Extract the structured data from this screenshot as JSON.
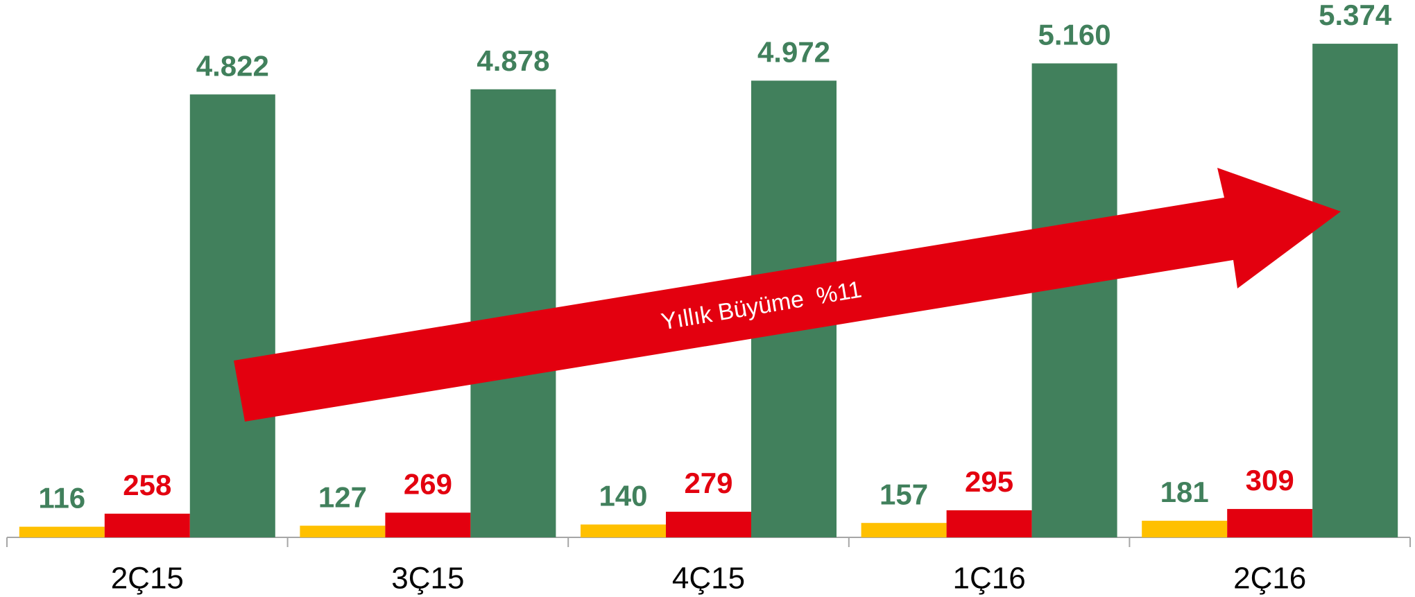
{
  "chart_data": {
    "type": "bar",
    "categories": [
      "2Ç15",
      "3Ç15",
      "4Ç15",
      "1Ç16",
      "2Ç16"
    ],
    "series": [
      {
        "color": "#FFC000",
        "label_color": "#41805C",
        "values": [
          116,
          127,
          140,
          157,
          181
        ]
      },
      {
        "color": "#E3000F",
        "label_color": "#E3000F",
        "values": [
          258,
          269,
          279,
          295,
          309
        ]
      },
      {
        "color": "#41805C",
        "label_color": "#41805C",
        "values": [
          4822,
          4878,
          4972,
          5160,
          5374
        ],
        "value_labels": [
          "4.822",
          "4.878",
          "4.972",
          "5.160",
          "5.374"
        ]
      }
    ],
    "ylim": [
      0,
      5850
    ],
    "annotation": {
      "text": "Yıllık Büyüme  %11",
      "color": "#E3000F"
    }
  }
}
